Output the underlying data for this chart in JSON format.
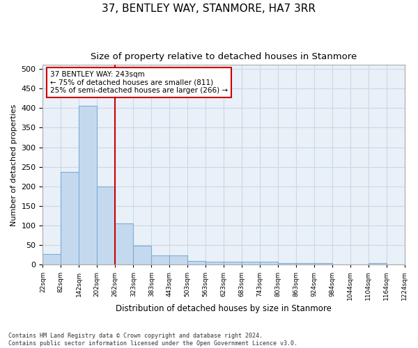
{
  "title": "37, BENTLEY WAY, STANMORE, HA7 3RR",
  "subtitle": "Size of property relative to detached houses in Stanmore",
  "xlabel": "Distribution of detached houses by size in Stanmore",
  "ylabel": "Number of detached properties",
  "bar_color": "#c5d9ee",
  "bar_edge_color": "#7aaed6",
  "bin_edges": [
    22,
    82,
    142,
    202,
    262,
    323,
    383,
    443,
    503,
    563,
    623,
    683,
    743,
    803,
    863,
    924,
    984,
    1044,
    1104,
    1164,
    1224
  ],
  "bar_heights": [
    27,
    237,
    405,
    200,
    105,
    49,
    23,
    23,
    10,
    7,
    7,
    7,
    7,
    5,
    5,
    5,
    0,
    0,
    5,
    0
  ],
  "x_tick_labels": [
    "22sqm",
    "82sqm",
    "142sqm",
    "202sqm",
    "262sqm",
    "323sqm",
    "383sqm",
    "443sqm",
    "503sqm",
    "563sqm",
    "623sqm",
    "683sqm",
    "743sqm",
    "803sqm",
    "863sqm",
    "924sqm",
    "984sqm",
    "1044sqm",
    "1104sqm",
    "1164sqm",
    "1224sqm"
  ],
  "ylim": [
    0,
    510
  ],
  "yticks": [
    0,
    50,
    100,
    150,
    200,
    250,
    300,
    350,
    400,
    450,
    500
  ],
  "vline_x": 262,
  "vline_color": "#cc0000",
  "annotation_line1": "37 BENTLEY WAY: 243sqm",
  "annotation_line2": "← 75% of detached houses are smaller (811)",
  "annotation_line3": "25% of semi-detached houses are larger (266) →",
  "annotation_box_color": "white",
  "annotation_box_edge_color": "#cc0000",
  "footer_text": "Contains HM Land Registry data © Crown copyright and database right 2024.\nContains public sector information licensed under the Open Government Licence v3.0.",
  "grid_color": "#c8d8e8",
  "background_color": "#eaf0f8",
  "title_fontsize": 11,
  "subtitle_fontsize": 9.5
}
